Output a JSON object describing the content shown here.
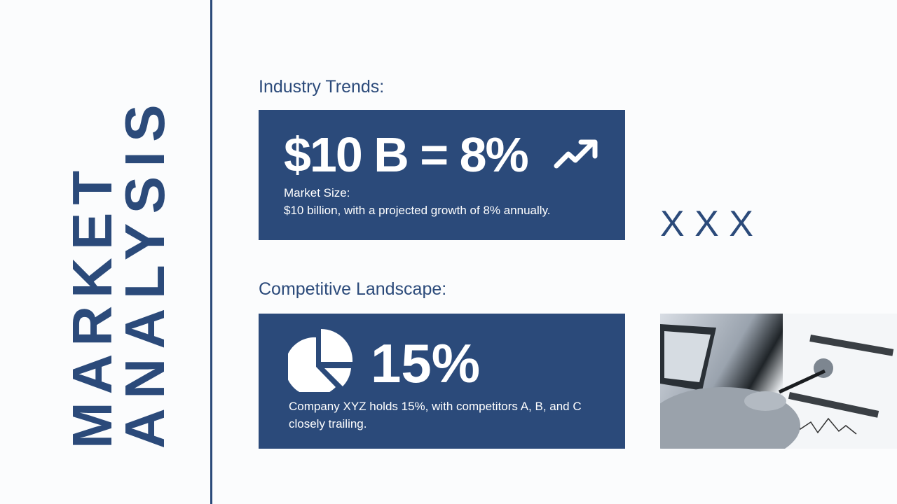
{
  "title": {
    "line1": "MARKET",
    "line2": "ANALYSIS"
  },
  "industry": {
    "heading": "Industry Trends:",
    "headline": "$10 B = 8%",
    "icon": "trending-up-icon",
    "label": "Market Size:",
    "text": "$10 billion, with a projected growth of 8% annually."
  },
  "decoration": {
    "marks": "X X X"
  },
  "competitive": {
    "heading": "Competitive Landscape:",
    "icon": "pie-chart-icon",
    "headline": "15%",
    "text": "Company XYZ holds 15%, with competitors A, B, and C closely trailing."
  },
  "photo": {
    "subject": "hand with stylus pointing at analytics dashboard on tablet"
  },
  "colors": {
    "accent": "#2b4a7a",
    "background": "#fbfcfd"
  }
}
